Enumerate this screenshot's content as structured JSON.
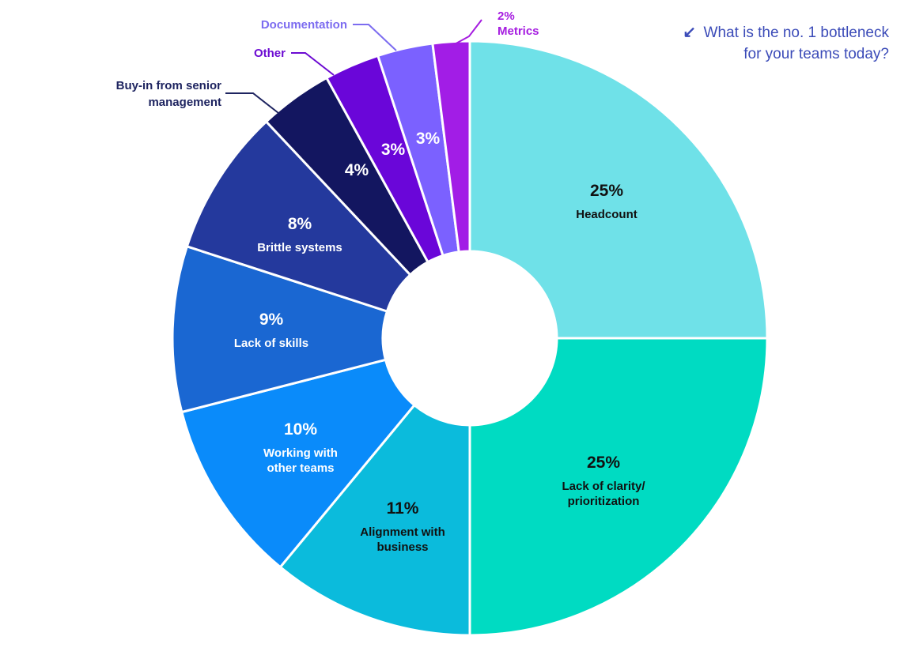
{
  "question": {
    "icon": "arrow-down-left-icon",
    "line1": "What is the no. 1 bottleneck",
    "line2": "for your teams today?"
  },
  "chart_data": {
    "type": "pie",
    "title": "What is the no. 1 bottleneck for your teams today?",
    "unit": "%",
    "slices": [
      {
        "label": "Headcount",
        "value": 25,
        "value_label": "25%",
        "label_lines": [
          "Headcount"
        ],
        "color": "#6fe1e8",
        "text_color": "#111111"
      },
      {
        "label": "Lack of clarity/ prioritization",
        "value": 25,
        "value_label": "25%",
        "label_lines": [
          "Lack of clarity/",
          "prioritization"
        ],
        "color": "#00dbc2",
        "text_color": "#111111"
      },
      {
        "label": "Alignment with business",
        "value": 11,
        "value_label": "11%",
        "label_lines": [
          "Alignment with",
          "business"
        ],
        "color": "#0bbbdc",
        "text_color": "#111111"
      },
      {
        "label": "Working with other teams",
        "value": 10,
        "value_label": "10%",
        "label_lines": [
          "Working with",
          "other teams"
        ],
        "color": "#0a8bfa",
        "text_color": "#ffffff"
      },
      {
        "label": "Lack of skills",
        "value": 9,
        "value_label": "9%",
        "label_lines": [
          "Lack of skills"
        ],
        "color": "#1a67d2",
        "text_color": "#ffffff"
      },
      {
        "label": "Brittle systems",
        "value": 8,
        "value_label": "8%",
        "label_lines": [
          "Brittle systems"
        ],
        "color": "#24399d",
        "text_color": "#ffffff"
      },
      {
        "label": "Buy-in from senior management",
        "value": 4,
        "value_label": "4%",
        "label_lines": [],
        "external_lines": [
          "Buy-in from senior",
          "management"
        ],
        "external_color": "#1e2460",
        "color": "#131660",
        "text_color": "#ffffff"
      },
      {
        "label": "Other",
        "value": 3,
        "value_label": "3%",
        "label_lines": [],
        "external_lines": [
          "Other"
        ],
        "external_color": "#6c0bd2",
        "color": "#6a06d9",
        "text_color": "#ffffff"
      },
      {
        "label": "Documentation",
        "value": 3,
        "value_label": "3%",
        "label_lines": [],
        "external_lines": [
          "Documentation"
        ],
        "external_color": "#7c6cf0",
        "color": "#7b61ff",
        "text_color": "#ffffff"
      },
      {
        "label": "Metrics",
        "value": 2,
        "value_label": "2%",
        "label_lines": [],
        "external_lines": [
          "2%",
          "Metrics"
        ],
        "external_color": "#a51ce0",
        "color": "#a21de6",
        "text_color": "#ffffff"
      }
    ]
  }
}
